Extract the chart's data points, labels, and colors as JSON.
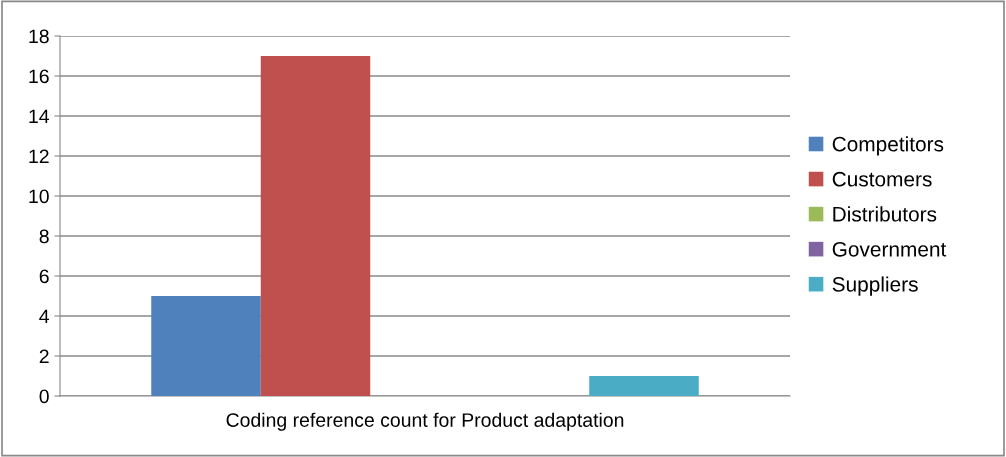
{
  "chart_data": {
    "type": "bar",
    "categories": [
      "Coding reference count for Product adaptation"
    ],
    "series": [
      {
        "name": "Competitors",
        "color": "#4f81bd",
        "values": [
          5
        ]
      },
      {
        "name": "Customers",
        "color": "#c0504d",
        "values": [
          17
        ]
      },
      {
        "name": "Distributors",
        "color": "#9bbb59",
        "values": [
          0
        ]
      },
      {
        "name": "Government",
        "color": "#8064a2",
        "values": [
          0
        ]
      },
      {
        "name": "Suppliers",
        "color": "#4bacc6",
        "values": [
          1
        ]
      }
    ],
    "ylim": [
      0,
      18
    ],
    "yticks": [
      0,
      2,
      4,
      6,
      8,
      10,
      12,
      14,
      16,
      18
    ],
    "grid": "y",
    "legend": "right"
  }
}
